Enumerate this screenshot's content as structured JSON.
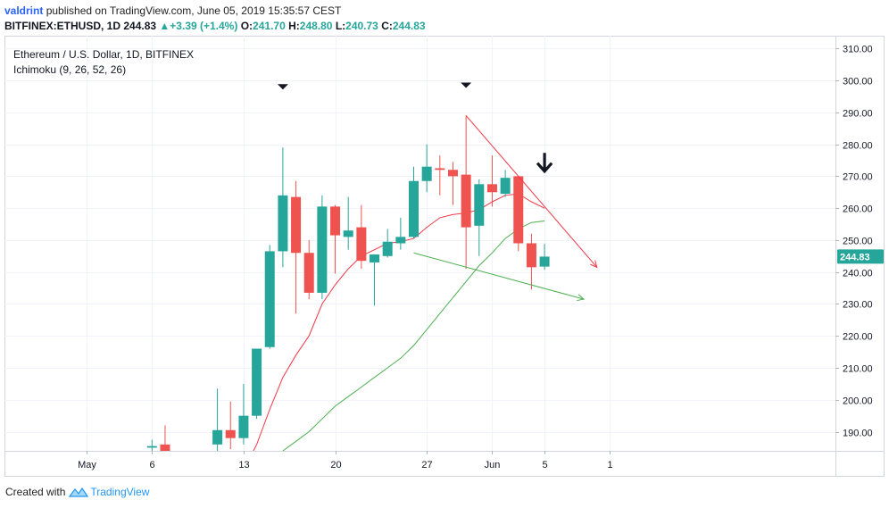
{
  "header": {
    "user": "valdrint",
    "published": "published on TradingView.com, June 05, 2019 15:35:57 CEST",
    "symbol": "BITFINEX:ETHUSD, 1D",
    "last": "244.83",
    "change": "+3.39 (+1.4%)",
    "o_label": "O:",
    "o_value": "241.70",
    "h_label": "H:",
    "h_value": "248.80",
    "l_label": "L:",
    "l_value": "240.73",
    "c_label": "C:",
    "c_value": "244.83"
  },
  "footer": {
    "created_with": "Created with",
    "brand": "TradingView"
  },
  "chart_data": {
    "type": "candlestick",
    "title": "Ethereum / U.S. Dollar, 1D, BITFINEX",
    "indicator": "Ichimoku (9, 26, 52, 26)",
    "ylim": [
      184,
      314
    ],
    "y_ticks": [
      190,
      200,
      210,
      220,
      230,
      240,
      250,
      260,
      270,
      280,
      290,
      300,
      310
    ],
    "y_tick_labels": [
      "190.00",
      "200.00",
      "210.00",
      "220.00",
      "230.00",
      "240.00",
      "250.00",
      "260.00",
      "270.00",
      "280.00",
      "290.00",
      "300.00",
      "310.00"
    ],
    "x_ticks": [
      {
        "label": "May",
        "day": 0
      },
      {
        "label": "6",
        "day": 5
      },
      {
        "label": "13",
        "day": 12
      },
      {
        "label": "20",
        "day": 19
      },
      {
        "label": "27",
        "day": 26
      },
      {
        "label": "Jun",
        "day": 31
      },
      {
        "label": "5",
        "day": 35
      },
      {
        "label": "1",
        "day": 40
      }
    ],
    "last_price": {
      "value": 244.83,
      "label": "244.83"
    },
    "colors": {
      "up": "#26a69a",
      "down": "#ef5350",
      "conversion": "#f23645",
      "base": "#4caf50",
      "trend_red": "#f23645",
      "trend_green": "#4caf50"
    },
    "candles": [
      {
        "day": 5,
        "o": 185,
        "h": 187.5,
        "l": 183,
        "c": 185.5
      },
      {
        "day": 6,
        "o": 186,
        "h": 192,
        "l": 183,
        "c": 184
      },
      {
        "day": 10,
        "o": 186,
        "h": 203.5,
        "l": 184,
        "c": 190.5
      },
      {
        "day": 11,
        "o": 190.5,
        "h": 199.5,
        "l": 184.5,
        "c": 188
      },
      {
        "day": 12,
        "o": 188,
        "h": 205,
        "l": 186,
        "c": 195
      },
      {
        "day": 13,
        "o": 195,
        "h": 216,
        "l": 194,
        "c": 216
      },
      {
        "day": 14,
        "o": 216.5,
        "h": 248.5,
        "l": 216,
        "c": 246.5
      },
      {
        "day": 15,
        "o": 246.5,
        "h": 279,
        "l": 241.5,
        "c": 264
      },
      {
        "day": 16,
        "o": 263.5,
        "h": 268.5,
        "l": 227,
        "c": 246
      },
      {
        "day": 17,
        "o": 246,
        "h": 250,
        "l": 231.5,
        "c": 233.5
      },
      {
        "day": 18,
        "o": 233.5,
        "h": 264,
        "l": 231.5,
        "c": 260.5
      },
      {
        "day": 19,
        "o": 260.5,
        "h": 261,
        "l": 239.5,
        "c": 251.5
      },
      {
        "day": 20,
        "o": 251,
        "h": 263.5,
        "l": 247,
        "c": 253
      },
      {
        "day": 21,
        "o": 254,
        "h": 261,
        "l": 241,
        "c": 243.5
      },
      {
        "day": 22,
        "o": 243,
        "h": 245.5,
        "l": 229.5,
        "c": 245.5
      },
      {
        "day": 23,
        "o": 245,
        "h": 253.5,
        "l": 244.5,
        "c": 249.5
      },
      {
        "day": 24,
        "o": 249,
        "h": 257,
        "l": 247,
        "c": 251
      },
      {
        "day": 25,
        "o": 251,
        "h": 273,
        "l": 250.5,
        "c": 268.5
      },
      {
        "day": 26,
        "o": 268.5,
        "h": 280,
        "l": 265,
        "c": 273
      },
      {
        "day": 27,
        "o": 272.5,
        "h": 276.5,
        "l": 264,
        "c": 272
      },
      {
        "day": 28,
        "o": 272,
        "h": 274.5,
        "l": 261,
        "c": 270
      },
      {
        "day": 29,
        "o": 270.5,
        "h": 289,
        "l": 241,
        "c": 254
      },
      {
        "day": 30,
        "o": 254.5,
        "h": 269,
        "l": 245,
        "c": 267.5
      },
      {
        "day": 31,
        "o": 267.5,
        "h": 276.5,
        "l": 260.5,
        "c": 265
      },
      {
        "day": 32,
        "o": 264.5,
        "h": 272,
        "l": 263.5,
        "c": 269.5
      },
      {
        "day": 33,
        "o": 270,
        "h": 270,
        "l": 246.5,
        "c": 249
      },
      {
        "day": 34,
        "o": 249,
        "h": 252,
        "l": 234.5,
        "c": 241.5
      },
      {
        "day": 35,
        "o": 241.7,
        "h": 248.8,
        "l": 240.73,
        "c": 244.83
      }
    ],
    "conversion_line": [
      [
        12,
        178
      ],
      [
        13,
        186
      ],
      [
        14,
        197
      ],
      [
        15,
        207
      ],
      [
        16,
        214
      ],
      [
        17,
        220
      ],
      [
        18,
        230
      ],
      [
        19,
        236
      ],
      [
        20,
        241
      ],
      [
        21,
        245
      ],
      [
        22,
        247
      ],
      [
        23,
        249
      ],
      [
        24,
        249.5
      ],
      [
        25,
        250.5
      ],
      [
        26,
        254
      ],
      [
        27,
        257
      ],
      [
        28,
        258
      ],
      [
        29,
        258.5
      ],
      [
        30,
        259.5
      ],
      [
        31,
        262
      ],
      [
        32,
        264
      ],
      [
        33,
        264.5
      ],
      [
        34,
        262
      ],
      [
        35,
        260
      ]
    ],
    "base_line": [
      [
        15,
        184
      ],
      [
        16,
        187
      ],
      [
        17,
        190
      ],
      [
        18,
        194
      ],
      [
        19,
        198
      ],
      [
        20,
        201
      ],
      [
        21,
        204
      ],
      [
        22,
        207
      ],
      [
        23,
        210
      ],
      [
        24,
        213
      ],
      [
        25,
        217
      ],
      [
        26,
        222
      ],
      [
        27,
        227
      ],
      [
        28,
        232
      ],
      [
        29,
        237
      ],
      [
        30,
        242
      ],
      [
        31,
        246
      ],
      [
        32,
        250.5
      ],
      [
        33,
        253.5
      ],
      [
        34,
        255.5
      ],
      [
        35,
        256
      ]
    ],
    "trend_lines": [
      {
        "color": "red",
        "points": [
          [
            29,
            289
          ],
          [
            39,
            241.5
          ]
        ],
        "arrow": true
      },
      {
        "color": "green",
        "points": [
          [
            25,
            246
          ],
          [
            38,
            231.5
          ]
        ],
        "arrow": true
      }
    ],
    "markers": [
      {
        "day": 15,
        "value": 298,
        "shape": "small-triangle"
      },
      {
        "day": 29,
        "value": 298.5,
        "shape": "small-triangle"
      },
      {
        "day": 35,
        "value": 273.5,
        "shape": "bold-arrow-down"
      }
    ]
  }
}
